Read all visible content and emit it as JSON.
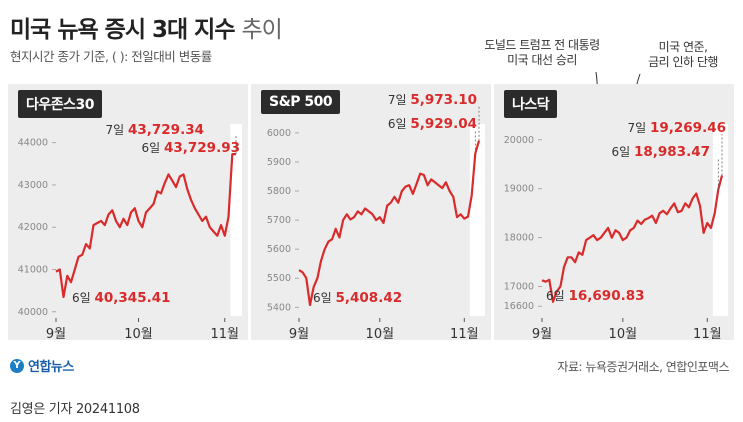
{
  "header": {
    "title_main": "미국 뉴욕 증시 3대 지수",
    "title_light": "추이",
    "subtitle": "현지시간 종가 기준, ( ): 전일대비 변동률"
  },
  "annotations": {
    "trump_line1": "도널드 트럼프 전 대통령",
    "trump_line2": "미국 대선 승리",
    "fed_line1": "미국 연준,",
    "fed_line2": "금리 인하 단행"
  },
  "footer": {
    "logo_mark": "Y",
    "logo_text": "연합뉴스",
    "source": "자료: 뉴욕증권거래소, 연합인포맥스",
    "credit": "김영은 기자  20241108"
  },
  "colors": {
    "line": "#d92b2b",
    "label_value": "#d92b2b",
    "panel_bg": "#ededed",
    "highlight": "#ffffff",
    "grid": "#cccccc"
  },
  "chart_data": [
    {
      "type": "line",
      "name": "다우존스30",
      "ylim": [
        39900,
        44300
      ],
      "yticks": [
        40000,
        41000,
        42000,
        43000,
        44000
      ],
      "xtick_labels": [
        "9월",
        "10월",
        "11월"
      ],
      "xtick_index": [
        0,
        22,
        45
      ],
      "values": [
        40950,
        41000,
        40350,
        40850,
        40700,
        41000,
        41300,
        41350,
        41600,
        41500,
        42050,
        42100,
        42150,
        42050,
        42300,
        42400,
        42150,
        42000,
        42200,
        42050,
        42350,
        42450,
        42150,
        42000,
        42350,
        42450,
        42550,
        42850,
        42800,
        43050,
        43250,
        43100,
        42950,
        43200,
        43250,
        42900,
        42650,
        42450,
        42300,
        42150,
        42250,
        42000,
        41900,
        41800,
        42050,
        41800,
        42250,
        43729.93,
        43729.34
      ],
      "annotations": [
        {
          "label": "6일",
          "value": "43,729.93"
        },
        {
          "label": "7일",
          "value": "43,729.34"
        },
        {
          "label": "6일",
          "value": "40,345.41"
        }
      ]
    },
    {
      "type": "line",
      "name": "S&P 500",
      "ylim": [
        5370,
        6010
      ],
      "yticks": [
        5400,
        5500,
        5600,
        5700,
        5800,
        5900,
        6000
      ],
      "xtick_labels": [
        "9월",
        "10월",
        "11월"
      ],
      "xtick_index": [
        0,
        22,
        45
      ],
      "values": [
        5528,
        5520,
        5500,
        5408,
        5470,
        5500,
        5560,
        5600,
        5626,
        5634,
        5670,
        5640,
        5700,
        5720,
        5702,
        5710,
        5730,
        5720,
        5740,
        5730,
        5720,
        5700,
        5710,
        5690,
        5750,
        5760,
        5780,
        5760,
        5800,
        5815,
        5820,
        5790,
        5825,
        5860,
        5855,
        5820,
        5840,
        5830,
        5820,
        5810,
        5830,
        5800,
        5780,
        5710,
        5720,
        5705,
        5712,
        5785,
        5929.04,
        5973.1
      ],
      "annotations": [
        {
          "label": "7일",
          "value": "5,973.10"
        },
        {
          "label": "6일",
          "value": "5,929.04"
        },
        {
          "label": "6일",
          "value": "5,408.42"
        }
      ]
    },
    {
      "type": "line",
      "name": "나스닥",
      "ylim": [
        16400,
        20200
      ],
      "yticks": [
        16600,
        17000,
        18000,
        19000,
        20000
      ],
      "xtick_labels": [
        "9월",
        "10월",
        "11월"
      ],
      "xtick_index": [
        0,
        22,
        45
      ],
      "values": [
        17130,
        17100,
        17140,
        16690,
        16900,
        17000,
        17400,
        17600,
        17600,
        17500,
        17700,
        17650,
        17950,
        18000,
        18050,
        17950,
        18000,
        18100,
        18200,
        18000,
        18150,
        18100,
        17950,
        18000,
        18150,
        18200,
        18350,
        18280,
        18370,
        18400,
        18450,
        18300,
        18500,
        18550,
        18480,
        18600,
        18700,
        18520,
        18550,
        18700,
        18620,
        18800,
        18900,
        18650,
        18100,
        18300,
        18200,
        18500,
        18983.47,
        19269.46
      ],
      "annotations": [
        {
          "label": "7일",
          "value": "19,269.46"
        },
        {
          "label": "6일",
          "value": "18,983.47"
        },
        {
          "label": "6일",
          "value": "16,690.83"
        }
      ]
    }
  ]
}
